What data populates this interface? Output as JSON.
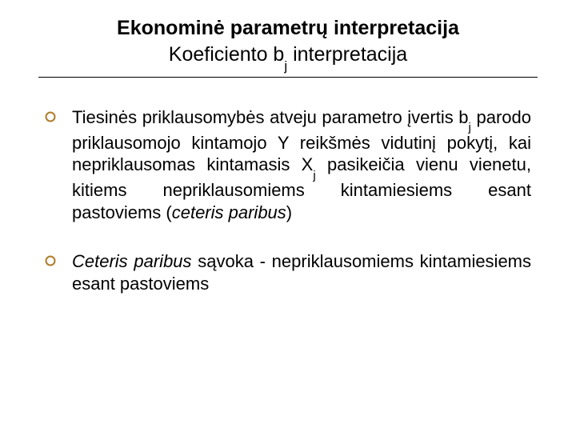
{
  "title": {
    "main": "Ekonominė parametrų interpretacija",
    "sub_pre": "Koeficiento b",
    "sub_sub": "j",
    "sub_post": " interpretacija"
  },
  "bullets": [
    {
      "html": "Tiesinės priklausomybės atveju parametro įvertis b<span class=\"sub\">j</span> parodo priklausomojo kintamojo Y reikšmės vidutinį pokytį, kai nepriklausomas kintamasis X<span class=\"sub\">j</span> pasikeičia vienu  vienetu, kitiems nepriklausomiems kintamiesiems esant pastoviems (<span class=\"ital\">ceteris paribus</span>)"
    },
    {
      "html": "<span class=\"ital\">Ceteris paribus</span> sąvoka - nepriklausomiems kintamiesiems esant pastoviems"
    }
  ],
  "style": {
    "bullet_stroke": "#b07c2a",
    "bullet_diameter": 14,
    "bullet_stroke_width": 2
  }
}
